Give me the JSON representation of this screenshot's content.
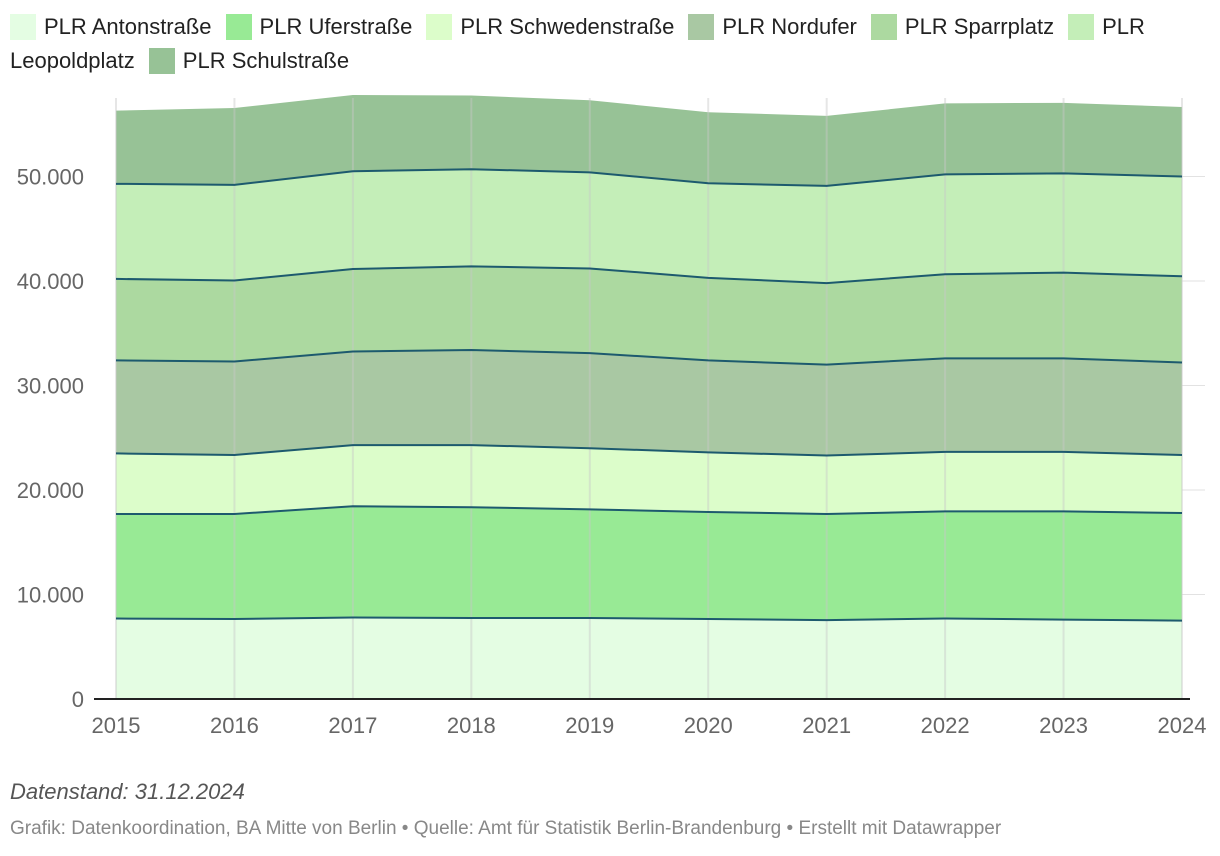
{
  "legend": [
    {
      "label": "PLR Antonstraße",
      "color": "#e4fde3"
    },
    {
      "label": "PLR Uferstraße",
      "color": "#98ea95"
    },
    {
      "label": "PLR Schwedenstraße",
      "color": "#dcfdca"
    },
    {
      "label": "PLR Nordufer",
      "color": "#a9c8a3"
    },
    {
      "label": "PLR Sparrplatz",
      "color": "#acd9a0"
    },
    {
      "label": "PLR Leopoldplatz",
      "color": "#c4eeb8"
    },
    {
      "label": "PLR Schulstraße",
      "color": "#97c296"
    }
  ],
  "line_color": "#1d5a6e",
  "chart_data": {
    "type": "area",
    "stacked": true,
    "x": [
      "2015",
      "2016",
      "2017",
      "2018",
      "2019",
      "2020",
      "2021",
      "2022",
      "2023",
      "2024"
    ],
    "series": [
      {
        "name": "PLR Antonstraße",
        "values": [
          7700,
          7650,
          7800,
          7750,
          7750,
          7650,
          7550,
          7700,
          7600,
          7500
        ]
      },
      {
        "name": "PLR Uferstraße",
        "values": [
          10000,
          10050,
          10650,
          10600,
          10400,
          10250,
          10150,
          10250,
          10350,
          10300
        ]
      },
      {
        "name": "PLR Schwedenstraße",
        "values": [
          5800,
          5650,
          5850,
          5950,
          5850,
          5700,
          5600,
          5700,
          5700,
          5550
        ]
      },
      {
        "name": "PLR Nordufer",
        "values": [
          8900,
          8950,
          8950,
          9100,
          9100,
          8800,
          8700,
          8950,
          8950,
          8850
        ]
      },
      {
        "name": "PLR Sparrplatz",
        "values": [
          7800,
          7750,
          7900,
          8000,
          8100,
          7900,
          7800,
          8050,
          8200,
          8250
        ]
      },
      {
        "name": "PLR Leopoldplatz",
        "values": [
          9100,
          9150,
          9350,
          9300,
          9200,
          9050,
          9300,
          9550,
          9500,
          9550
        ]
      },
      {
        "name": "PLR Schulstraße",
        "values": [
          7000,
          7350,
          7300,
          7050,
          6900,
          6800,
          6700,
          6800,
          6750,
          6650
        ]
      }
    ],
    "yticks": [
      {
        "value": 0,
        "label": "0"
      },
      {
        "value": 10000,
        "label": "10.000"
      },
      {
        "value": 20000,
        "label": "20.000"
      },
      {
        "value": 30000,
        "label": "30.000"
      },
      {
        "value": 40000,
        "label": "40.000"
      },
      {
        "value": 50000,
        "label": "50.000"
      }
    ],
    "ylim": [
      0,
      57800
    ],
    "grid": true,
    "legend_position": "top"
  },
  "footer": {
    "note": "Datenstand: 31.12.2024",
    "credit": "Grafik: Datenkoordination, BA Mitte von Berlin • Quelle: Amt für Statistik Berlin-Brandenburg • Erstellt mit Datawrapper"
  }
}
